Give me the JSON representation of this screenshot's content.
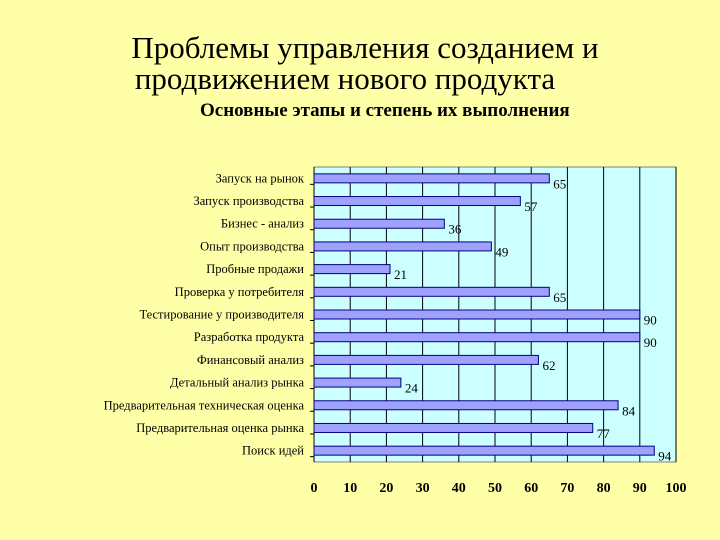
{
  "header": {
    "title_line1": "Проблемы управления созданием и",
    "title_line2": "продвижением нового продукта",
    "subtitle": "Основные этапы и степень их выполнения"
  },
  "colors": {
    "background": "#ffffa8",
    "plot_area": "#ccffff",
    "bar_fill": "#a0a0ff",
    "bar_stroke": "#000080"
  },
  "chart_data": {
    "type": "bar",
    "orientation": "horizontal",
    "categories": [
      "Запуск на рынок",
      "Запуск производства",
      "Бизнес - анализ",
      "Опыт производства",
      "Пробные продажи",
      "Проверка у потребителя",
      "Тестирование у производителя",
      "Разработка продукта",
      "Финансовый анализ",
      "Детальный анализ рынка",
      "Предварительная техническая оценка",
      "Предварительная оценка рынка",
      "Поиск идей"
    ],
    "values": [
      65,
      57,
      36,
      49,
      21,
      65,
      90,
      90,
      62,
      24,
      84,
      77,
      94
    ],
    "xlim": [
      0,
      100
    ],
    "xticks": [
      0,
      10,
      20,
      30,
      40,
      50,
      60,
      70,
      80,
      90,
      100
    ],
    "grid": true,
    "data_labels": true
  }
}
